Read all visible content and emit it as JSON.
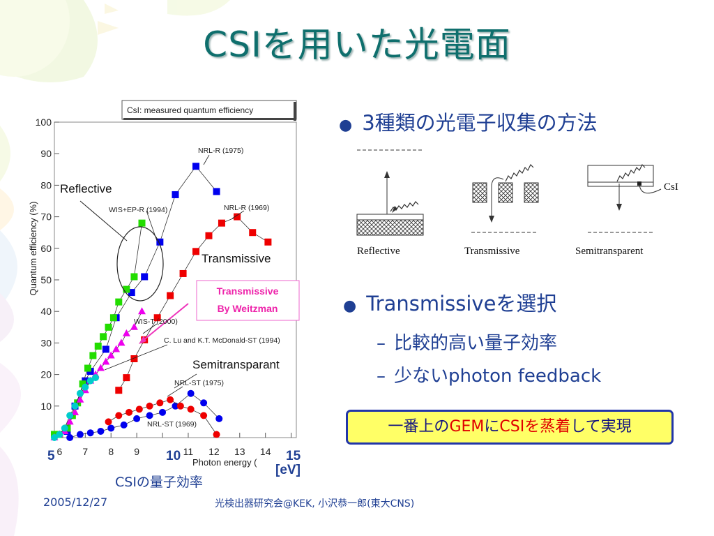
{
  "slide": {
    "title": "CSIを用いた光電面",
    "bullet1": "3種類の光電子収集の方法",
    "bullet2": "Transmissiveを選択",
    "sub1": "比較的高い量子効率",
    "sub2": "少ないphoton feedback",
    "conclusion": {
      "part1": "一番上の",
      "part2": "GEM",
      "part3": "に",
      "part4": "CSI",
      "part5": "を蒸着",
      "part6": "して実現"
    },
    "chart_caption": "CSIの量子効率",
    "footer_date": "2005/12/27",
    "footer_venue": "光検出器研究会@KEK, 小沢恭一郎(東大CNS)"
  },
  "diagram": {
    "reflective": "Reflective",
    "transmissive": "Transmissive",
    "semitransparent": "Semitransparent",
    "csi": "CsI"
  },
  "colors": {
    "title": "#0f6f6d",
    "text": "#1f3f93",
    "highlight_bg": "#ffff66",
    "highlight_red": "#e00000"
  },
  "chart_data": {
    "type": "scatter",
    "title": "CsI:   measured quantum efficiency",
    "xlabel": "Photon energy (",
    "xlabel_unit": "[eV]",
    "ylabel": "Quantum efficiency (%)",
    "xlim": [
      5.8,
      15.2
    ],
    "ylim": [
      0,
      100
    ],
    "x_ticks": [
      6,
      7,
      8,
      9,
      10,
      11,
      12,
      13,
      14,
      15
    ],
    "y_ticks": [
      10,
      20,
      30,
      40,
      50,
      60,
      70,
      80,
      90,
      100
    ],
    "overlay_ticks": {
      "x5": "5",
      "x10": "10",
      "x15": "15"
    },
    "annotations": {
      "reflective": "Reflective",
      "transmissive": "Transmissive",
      "semitransparant": "Semitransparant",
      "weitzman": "Transmissive By Weitzman",
      "nrl_r_1975": "NRL-R (1975)",
      "nrl_r_1969": "NRL-R (1969)",
      "wis_ep_r": "WIS+EP-R (1994)",
      "wis_t": "WIS-T (2000)",
      "lu": "C. Lu and K.T. McDonald-ST (1994)",
      "nrl_st_1975": "NRL-ST (1975)",
      "nrl_st_1969": "NRL-ST (1969)"
    },
    "series": [
      {
        "name": "NRL-R (1975)",
        "color": "#0000ee",
        "marker": "square",
        "x": [
          6.3,
          6.6,
          7.0,
          7.2,
          7.8,
          8.2,
          8.8,
          9.3,
          9.9,
          10.5,
          11.3,
          12.1
        ],
        "y": [
          2,
          10,
          18,
          21,
          28,
          38,
          46,
          51,
          62,
          77,
          86,
          78
        ]
      },
      {
        "name": "NRL-R (1969)",
        "color": "#ee0000",
        "marker": "square",
        "x": [
          8.3,
          8.6,
          8.9,
          9.3,
          9.8,
          10.3,
          10.8,
          11.3,
          11.8,
          12.3,
          12.9,
          13.5,
          14.1
        ],
        "y": [
          15,
          19,
          25,
          31,
          38,
          45,
          52,
          59,
          64,
          68,
          70,
          65,
          62
        ]
      },
      {
        "name": "WIS+EP-R (1994)",
        "color": "#22dd00",
        "marker": "square",
        "x": [
          5.8,
          6.0,
          6.3,
          6.5,
          6.7,
          6.9,
          7.1,
          7.3,
          7.5,
          7.7,
          7.9,
          8.1,
          8.3,
          8.6,
          8.9,
          9.2
        ],
        "y": [
          1,
          1,
          3,
          7,
          11,
          17,
          22,
          26,
          29,
          32,
          35,
          38,
          43,
          47,
          51,
          68
        ]
      },
      {
        "name": "WIS-T (2000)",
        "color": "#ee00ee",
        "marker": "triangle",
        "x": [
          5.8,
          6.0,
          6.2,
          6.4,
          6.6,
          6.8,
          7.0,
          7.2,
          7.4,
          7.6,
          7.8,
          8.0,
          8.2,
          8.4,
          8.6,
          8.9,
          9.2
        ],
        "y": [
          0,
          1,
          2,
          5,
          8,
          12,
          15,
          18,
          20,
          22,
          24,
          26,
          28,
          30,
          33,
          35,
          40
        ]
      },
      {
        "name": "C. Lu and K.T. McDonald-ST (1994)",
        "color": "#00cccc",
        "marker": "circle",
        "x": [
          5.8,
          6.0,
          6.2,
          6.4,
          6.6,
          6.8,
          7.0,
          7.2,
          7.4
        ],
        "y": [
          0,
          1,
          3,
          7,
          10,
          14,
          16,
          18,
          19
        ]
      },
      {
        "name": "NRL-ST (1975)",
        "color": "#0000ee",
        "marker": "circle",
        "x": [
          6.4,
          6.8,
          7.2,
          7.6,
          8.0,
          8.5,
          9.0,
          9.5,
          10.0,
          10.5,
          11.1,
          11.6,
          12.2
        ],
        "y": [
          0,
          1,
          1.5,
          2,
          3,
          4,
          6,
          7,
          8,
          10,
          14,
          11,
          6
        ]
      },
      {
        "name": "NRL-ST (1969)",
        "color": "#ee0000",
        "marker": "circle",
        "x": [
          7.9,
          8.3,
          8.7,
          9.1,
          9.5,
          9.9,
          10.3,
          10.7,
          11.1,
          11.6,
          12.1
        ],
        "y": [
          5,
          7,
          8,
          9,
          10,
          11,
          12,
          10,
          9,
          7,
          1
        ]
      }
    ]
  }
}
